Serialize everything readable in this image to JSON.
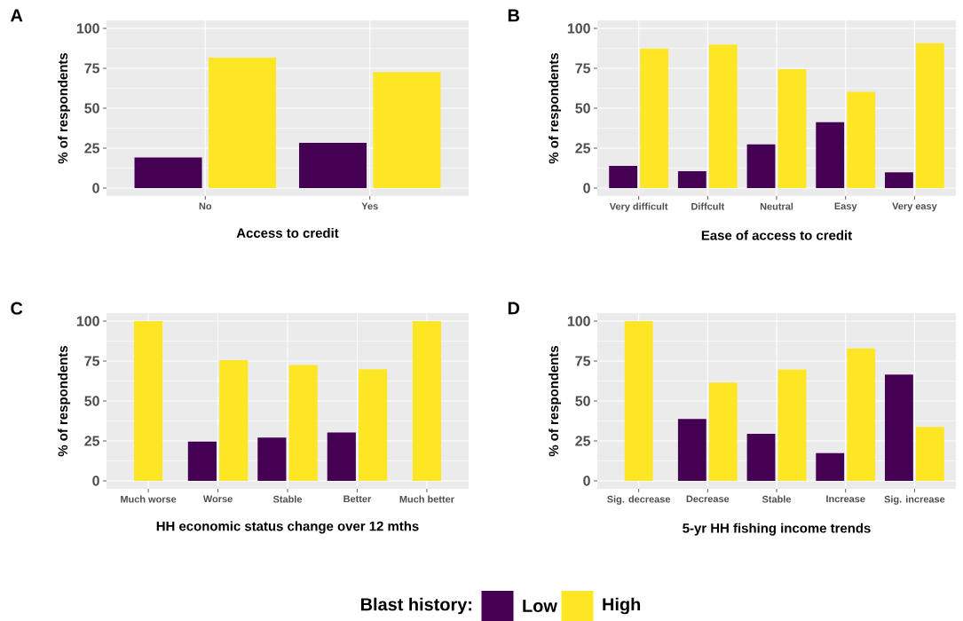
{
  "chart_data": [
    {
      "type": "bar",
      "title": "A",
      "xlabel": "Access to credit",
      "ylabel": "% of respondents",
      "categories": [
        "No",
        "Yes"
      ],
      "ylim": [
        -5,
        105
      ],
      "yticks": [
        0,
        25,
        50,
        75,
        100
      ],
      "grid": true,
      "series": [
        {
          "color": "#440154",
          "values": [
            19.1,
            28.3
          ]
        },
        {
          "color": "#fde725",
          "values": [
            81.6,
            72.7
          ]
        }
      ]
    },
    {
      "type": "bar",
      "title": "B",
      "xlabel": "Ease of access to credit",
      "ylabel": "% of respondents",
      "categories": [
        "Very difficult",
        "Diffcult",
        "Neutral",
        "Easy",
        "Very easy"
      ],
      "ylim": [
        -5,
        105
      ],
      "yticks": [
        0,
        25,
        50,
        75,
        100
      ],
      "grid": true,
      "series": [
        {
          "color": "#440154",
          "values": [
            13.9,
            10.6,
            27.3,
            41.2,
            9.9
          ]
        },
        {
          "color": "#fde725",
          "values": [
            87.4,
            89.9,
            74.5,
            60.3,
            90.7
          ]
        }
      ]
    },
    {
      "type": "bar",
      "title": "C",
      "xlabel": "HH economic status change over 12 mths",
      "ylabel": "% of respondents",
      "categories": [
        "Much worse",
        "Worse",
        "Stable",
        "Better",
        "Much better"
      ],
      "ylim": [
        -5,
        105
      ],
      "yticks": [
        0,
        25,
        50,
        75,
        100
      ],
      "grid": true,
      "series": [
        {
          "color": "#440154",
          "values": [
            null,
            24.6,
            27.1,
            30.3,
            null
          ]
        },
        {
          "color": "#fde725",
          "values": [
            100,
            75.6,
            72.5,
            69.8,
            100
          ]
        }
      ]
    },
    {
      "type": "bar",
      "title": "D",
      "xlabel": "5-yr HH fishing income trends",
      "ylabel": "% of respondents",
      "categories": [
        "Sig. decrease",
        "Decrease",
        "Stable",
        "Increase",
        "Sig. increase"
      ],
      "ylim": [
        -5,
        105
      ],
      "yticks": [
        0,
        25,
        50,
        75,
        100
      ],
      "grid": true,
      "legend": "bottom",
      "legend_title": "Blast history:",
      "series": [
        {
          "name": "Low",
          "color": "#440154",
          "values": [
            null,
            38.7,
            29.5,
            17.3,
            66.5
          ]
        },
        {
          "name": "High",
          "color": "#fde725",
          "values": [
            100,
            61.5,
            69.7,
            82.9,
            33.7
          ]
        }
      ]
    }
  ]
}
